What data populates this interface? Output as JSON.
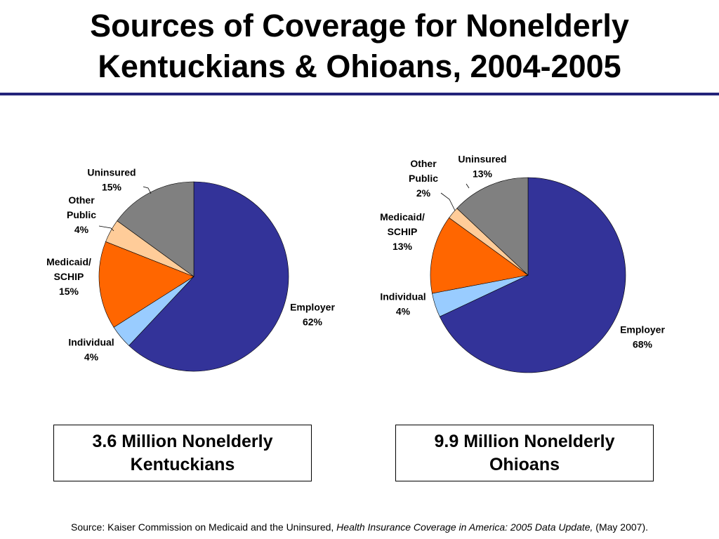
{
  "title": {
    "line1": "Sources of Coverage for Nonelderly",
    "line2": "Kentuckians & Ohioans, 2004-2005"
  },
  "colors": {
    "employer": "#333399",
    "individual": "#99ccff",
    "medicaid": "#ff6600",
    "other_public": "#ffcc99",
    "uninsured": "#808080",
    "rule": "#23237a"
  },
  "chart_data": [
    {
      "type": "pie",
      "name": "Kentucky",
      "slices": [
        {
          "label": [
            "Employer"
          ],
          "value": 62,
          "display": "62%",
          "color_key": "employer"
        },
        {
          "label": [
            "Individual"
          ],
          "value": 4,
          "display": "4%",
          "color_key": "individual"
        },
        {
          "label": [
            "Medicaid/",
            "SCHIP"
          ],
          "value": 15,
          "display": "15%",
          "color_key": "medicaid"
        },
        {
          "label": [
            "Other",
            "Public"
          ],
          "value": 4,
          "display": "4%",
          "color_key": "other_public"
        },
        {
          "label": [
            "Uninsured"
          ],
          "value": 15,
          "display": "15%",
          "color_key": "uninsured"
        }
      ]
    },
    {
      "type": "pie",
      "name": "Ohio",
      "slices": [
        {
          "label": [
            "Employer"
          ],
          "value": 68,
          "display": "68%",
          "color_key": "employer"
        },
        {
          "label": [
            "Individual"
          ],
          "value": 4,
          "display": "4%",
          "color_key": "individual"
        },
        {
          "label": [
            "Medicaid/",
            "SCHIP"
          ],
          "value": 13,
          "display": "13%",
          "color_key": "medicaid"
        },
        {
          "label": [
            "Other",
            "Public"
          ],
          "value": 2,
          "display": "2%",
          "color_key": "other_public"
        },
        {
          "label": [
            "Uninsured"
          ],
          "value": 13,
          "display": "13%",
          "color_key": "uninsured"
        }
      ]
    }
  ],
  "captions": {
    "kentucky": {
      "line1": "3.6 Million Nonelderly",
      "line2": "Kentuckians"
    },
    "ohio": {
      "line1": "9.9 Million Nonelderly",
      "line2": "Ohioans"
    }
  },
  "source": {
    "prefix": "Source: Kaiser Commission on Medicaid and the Uninsured, ",
    "title": "Health Insurance Coverage in America: 2005 Data Update,",
    "suffix": " (May 2007)."
  }
}
